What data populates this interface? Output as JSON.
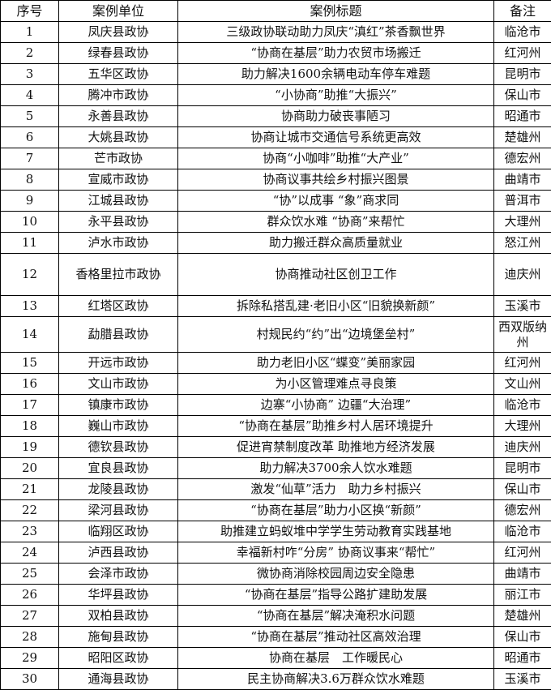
{
  "headers": [
    "序号",
    "案例单位",
    "案例标题",
    "备注"
  ],
  "rows": [
    [
      "1",
      "凤庆县政协",
      "三级政协联动助力凤庆“滇红”茶香飘世界",
      "临沧市"
    ],
    [
      "2",
      "绿春县政协",
      "“协商在基层”助力农贸市场搬迁",
      "红河州"
    ],
    [
      "3",
      "五华区政协",
      "助力解决1600余辆电动车停车难题",
      "昆明市"
    ],
    [
      "4",
      "腾冲市政协",
      "“小协商”助推“大振兴”",
      "保山市"
    ],
    [
      "5",
      "永善县政协",
      "协商助力破丧事陋习",
      "昭通市"
    ],
    [
      "6",
      "大姚县政协",
      "协商让城市交通信号系统更高效",
      "楚雄州"
    ],
    [
      "7",
      "芒市政协",
      "协商“小咖啡”助推“大产业”",
      "德宏州"
    ],
    [
      "8",
      "宣威市政协",
      "协商议事共绘乡村振兴图景",
      "曲靖市"
    ],
    [
      "9",
      "江城县政协",
      "“协”以成事 “象”商求同",
      "普洱市"
    ],
    [
      "10",
      "永平县政协",
      "群众饮水难 “协商”来帮忙",
      "大理州"
    ],
    [
      "11",
      "泸水市政协",
      "助力搬迁群众高质量就业",
      "怒江州"
    ],
    [
      "12",
      "香格里拉市政协",
      "协商推动社区创卫工作",
      "迪庆州"
    ],
    [
      "13",
      "红塔区政协",
      "拆除私搭乱建·老旧小区“旧貌换新颜”",
      "玉溪市"
    ],
    [
      "14",
      "勐腊县政协",
      "村规民约“约”出“边境堡垒村”",
      "西双版纳州"
    ],
    [
      "15",
      "开远市政协",
      "助力老旧小区“蝶变”美丽家园",
      "红河州"
    ],
    [
      "16",
      "文山市政协",
      "为小区管理难点寻良策",
      "文山州"
    ],
    [
      "17",
      "镇康市政协",
      "边寨“小协商” 边疆“大治理”",
      "临沧市"
    ],
    [
      "18",
      "巍山市政协",
      "“协商在基层”助推乡村人居环境提升",
      "大理州"
    ],
    [
      "19",
      "德钦县政协",
      "促进宵禁制度改革 助推地方经济发展",
      "迪庆州"
    ],
    [
      "20",
      "宜良县政协",
      "助力解决3700余人饮水难题",
      "昆明市"
    ],
    [
      "21",
      "龙陵县政协",
      "激发“仙草”活力　助力乡村振兴",
      "保山市"
    ],
    [
      "22",
      "梁河县政协",
      "“协商在基层”助力小区换“新颜”",
      "德宏州"
    ],
    [
      "23",
      "临翔区政协",
      "助推建立蚂蚁堆中学学生劳动教育实践基地",
      "临沧市"
    ],
    [
      "24",
      "泸西县政协",
      "幸福新村咋“分房” 协商议事来“帮忙”",
      "红河州"
    ],
    [
      "25",
      "会泽市政协",
      "微协商消除校园周边安全隐患",
      "曲靖市"
    ],
    [
      "26",
      "华坪县政协",
      "“协商在基层”指导公路扩建助发展",
      "丽江市"
    ],
    [
      "27",
      "双柏县政协",
      "“协商在基层”解决淹积水问题",
      "楚雄州"
    ],
    [
      "28",
      "施甸县政协",
      "“协商在基层”推动社区高效治理",
      "保山市"
    ],
    [
      "29",
      "昭阳区政协",
      "协商在基层　工作暖民心",
      "昭通市"
    ],
    [
      "30",
      "通海县政协",
      "民主协商解决3.6万群众饮水难题",
      "玉溪市"
    ]
  ]
}
